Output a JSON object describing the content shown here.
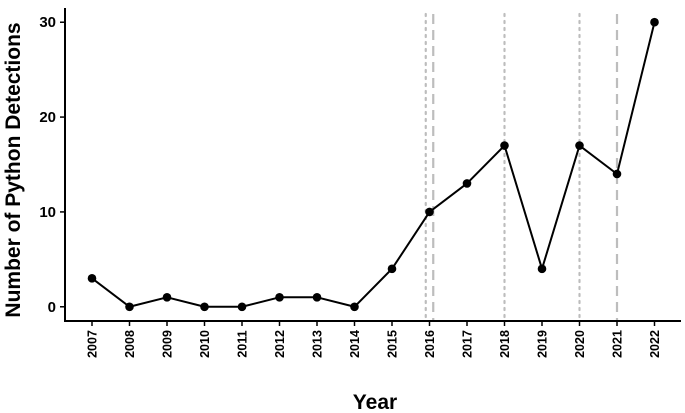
{
  "chart_data": {
    "type": "line",
    "title": "",
    "xlabel": "Year",
    "ylabel": "Number of Python Detections",
    "categories": [
      "2007",
      "2008",
      "2009",
      "2010",
      "2011",
      "2012",
      "2013",
      "2014",
      "2015",
      "2016",
      "2017",
      "2018",
      "2019",
      "2020",
      "2021",
      "2022"
    ],
    "series": [
      {
        "values": [
          3,
          0,
          1,
          0,
          0,
          1,
          1,
          0,
          4,
          10,
          13,
          17,
          4,
          17,
          14,
          30
        ]
      }
    ],
    "ylim": [
      -1.5,
      31.5
    ],
    "yticks": [
      0,
      10,
      20,
      30
    ],
    "grid": false,
    "vlines": [
      {
        "x": 2015.9,
        "style": "dotted",
        "color": "#bdbdbd"
      },
      {
        "x": 2016.1,
        "style": "dashed",
        "color": "#bdbdbd"
      },
      {
        "x": 2018.0,
        "style": "dotted",
        "color": "#bdbdbd"
      },
      {
        "x": 2020.0,
        "style": "dotted",
        "color": "#bdbdbd"
      },
      {
        "x": 2021.0,
        "style": "dashed",
        "color": "#bdbdbd"
      }
    ],
    "line_color": "#000000",
    "point_color": "#000000"
  }
}
